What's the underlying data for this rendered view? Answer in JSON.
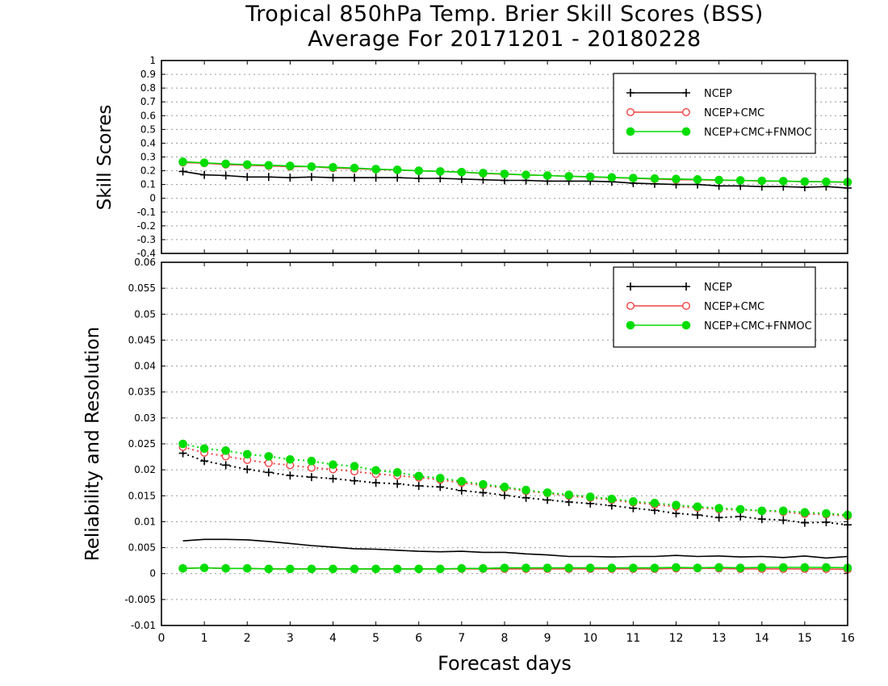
{
  "title": {
    "line1": "Tropical 850hPa Temp. Brier Skill Scores (BSS)",
    "line2": "Average For 20171201 - 20180228"
  },
  "xlabel": "Forecast days",
  "colors": {
    "ncep": "#000000",
    "ncep_cmc": "#ee4444",
    "ncep_cmc_fnmoc": "#00dd00",
    "grid": "#999999"
  },
  "chart_data": [
    {
      "type": "line",
      "ylabel": "Skill Scores",
      "ylim": [
        -0.4,
        1
      ],
      "yticks": [
        "-0.4",
        "-0.3",
        "-0.2",
        "-0.1",
        "0",
        "0.1",
        "0.2",
        "0.3",
        "0.4",
        "0.5",
        "0.6",
        "0.7",
        "0.8",
        "0.9",
        "1"
      ],
      "xlim": [
        0,
        16
      ],
      "xticks": [
        "0",
        "1",
        "2",
        "3",
        "4",
        "5",
        "6",
        "7",
        "8",
        "9",
        "10",
        "11",
        "12",
        "13",
        "14",
        "15",
        "16"
      ],
      "grid": true,
      "legend_position": "top-right",
      "x": [
        0.5,
        1,
        1.5,
        2,
        2.5,
        3,
        3.5,
        4,
        4.5,
        5,
        5.5,
        6,
        6.5,
        7,
        7.5,
        8,
        8.5,
        9,
        9.5,
        10,
        10.5,
        11,
        11.5,
        12,
        12.5,
        13,
        13.5,
        14,
        14.5,
        15,
        15.5,
        16
      ],
      "series": [
        {
          "name": "NCEP",
          "marker": "plus",
          "line": "solid",
          "values": [
            0.195,
            0.17,
            0.165,
            0.155,
            0.155,
            0.15,
            0.155,
            0.15,
            0.15,
            0.15,
            0.15,
            0.145,
            0.145,
            0.14,
            0.135,
            0.13,
            0.13,
            0.125,
            0.125,
            0.125,
            0.12,
            0.11,
            0.105,
            0.1,
            0.1,
            0.09,
            0.09,
            0.085,
            0.085,
            0.08,
            0.085,
            0.075
          ]
        },
        {
          "name": "NCEP+CMC",
          "marker": "open-circle",
          "line": "solid",
          "values": [
            0.26,
            0.255,
            0.245,
            0.24,
            0.235,
            0.23,
            0.23,
            0.22,
            0.215,
            0.21,
            0.205,
            0.2,
            0.195,
            0.19,
            0.18,
            0.175,
            0.17,
            0.165,
            0.16,
            0.155,
            0.15,
            0.145,
            0.14,
            0.135,
            0.135,
            0.13,
            0.13,
            0.125,
            0.125,
            0.12,
            0.12,
            0.115
          ]
        },
        {
          "name": "NCEP+CMC+FNMOC",
          "marker": "filled-circle",
          "line": "solid",
          "values": [
            0.265,
            0.258,
            0.25,
            0.245,
            0.24,
            0.235,
            0.23,
            0.225,
            0.22,
            0.212,
            0.207,
            0.2,
            0.195,
            0.19,
            0.183,
            0.177,
            0.17,
            0.165,
            0.16,
            0.157,
            0.152,
            0.147,
            0.143,
            0.14,
            0.137,
            0.133,
            0.13,
            0.127,
            0.125,
            0.122,
            0.12,
            0.118
          ]
        }
      ]
    },
    {
      "type": "line",
      "ylabel": "Reliability and Resolution",
      "ylim": [
        -0.01,
        0.06
      ],
      "yticks": [
        "-0.01",
        "-0.005",
        "0",
        "0.005",
        "0.01",
        "0.015",
        "0.02",
        "0.025",
        "0.03",
        "0.035",
        "0.04",
        "0.045",
        "0.05",
        "0.055",
        "0.06"
      ],
      "xlim": [
        0,
        16
      ],
      "xticks": [
        "0",
        "1",
        "2",
        "3",
        "4",
        "5",
        "6",
        "7",
        "8",
        "9",
        "10",
        "11",
        "12",
        "13",
        "14",
        "15",
        "16"
      ],
      "grid": true,
      "legend_position": "top-right",
      "x": [
        0.5,
        1,
        1.5,
        2,
        2.5,
        3,
        3.5,
        4,
        4.5,
        5,
        5.5,
        6,
        6.5,
        7,
        7.5,
        8,
        8.5,
        9,
        9.5,
        10,
        10.5,
        11,
        11.5,
        12,
        12.5,
        13,
        13.5,
        14,
        14.5,
        15,
        15.5,
        16
      ],
      "series": [
        {
          "name": "NCEP",
          "metric": "reliability",
          "marker": "none",
          "line": "solid",
          "values": [
            0.0063,
            0.0066,
            0.0066,
            0.0065,
            0.0062,
            0.0058,
            0.0054,
            0.0051,
            0.0048,
            0.0047,
            0.0045,
            0.0043,
            0.0042,
            0.0043,
            0.0041,
            0.0041,
            0.0038,
            0.0036,
            0.0033,
            0.0033,
            0.0032,
            0.0033,
            0.0033,
            0.0035,
            0.0033,
            0.0034,
            0.0032,
            0.0033,
            0.0031,
            0.0034,
            0.003,
            0.0033
          ]
        },
        {
          "name": "NCEP",
          "metric": "resolution",
          "marker": "plus",
          "line": "dotted",
          "values": [
            0.0232,
            0.0217,
            0.0209,
            0.0201,
            0.0195,
            0.0189,
            0.0186,
            0.0183,
            0.0179,
            0.0175,
            0.0173,
            0.0169,
            0.0167,
            0.016,
            0.0156,
            0.0151,
            0.0146,
            0.0142,
            0.0138,
            0.0135,
            0.0131,
            0.0126,
            0.0122,
            0.0116,
            0.0113,
            0.0108,
            0.011,
            0.0105,
            0.0103,
            0.0098,
            0.0099,
            0.0094
          ]
        },
        {
          "name": "NCEP+CMC",
          "metric": "reliability",
          "marker": "open-circle",
          "line": "solid",
          "values": [
            0.001,
            0.0011,
            0.001,
            0.001,
            0.0009,
            0.0009,
            0.0009,
            0.0009,
            0.0009,
            0.0009,
            0.0009,
            0.0009,
            0.0009,
            0.0009,
            0.0009,
            0.0009,
            0.0009,
            0.0009,
            0.0009,
            0.0009,
            0.0009,
            0.0009,
            0.0009,
            0.001,
            0.001,
            0.001,
            0.0009,
            0.0009,
            0.0009,
            0.0009,
            0.0009,
            0.0008
          ]
        },
        {
          "name": "NCEP+CMC",
          "metric": "resolution",
          "marker": "open-circle",
          "line": "dotted",
          "values": [
            0.0244,
            0.0233,
            0.0226,
            0.0219,
            0.0213,
            0.0209,
            0.0204,
            0.0201,
            0.0197,
            0.0192,
            0.0189,
            0.0185,
            0.0181,
            0.0175,
            0.017,
            0.0165,
            0.0159,
            0.0155,
            0.015,
            0.0146,
            0.0142,
            0.0137,
            0.0133,
            0.0129,
            0.0127,
            0.0124,
            0.0123,
            0.0121,
            0.0119,
            0.0115,
            0.0114,
            0.0111
          ]
        },
        {
          "name": "NCEP+CMC+FNMOC",
          "metric": "reliability",
          "marker": "filled-circle",
          "line": "solid",
          "values": [
            0.001,
            0.0011,
            0.001,
            0.001,
            0.0009,
            0.0009,
            0.0009,
            0.0009,
            0.0009,
            0.0009,
            0.0009,
            0.0009,
            0.0009,
            0.001,
            0.001,
            0.0011,
            0.0011,
            0.0011,
            0.0011,
            0.0011,
            0.0011,
            0.0011,
            0.0011,
            0.0012,
            0.0011,
            0.0012,
            0.0011,
            0.0012,
            0.0012,
            0.0012,
            0.0012,
            0.0011
          ]
        },
        {
          "name": "NCEP+CMC+FNMOC",
          "metric": "resolution",
          "marker": "filled-circle",
          "line": "dotted",
          "values": [
            0.025,
            0.0241,
            0.0237,
            0.023,
            0.0226,
            0.022,
            0.0217,
            0.021,
            0.0207,
            0.0199,
            0.0195,
            0.0188,
            0.0184,
            0.0178,
            0.0172,
            0.0167,
            0.0161,
            0.0156,
            0.0152,
            0.0148,
            0.0144,
            0.0139,
            0.0136,
            0.0132,
            0.0129,
            0.0126,
            0.0124,
            0.0121,
            0.0121,
            0.0118,
            0.0116,
            0.0113
          ]
        }
      ]
    }
  ]
}
